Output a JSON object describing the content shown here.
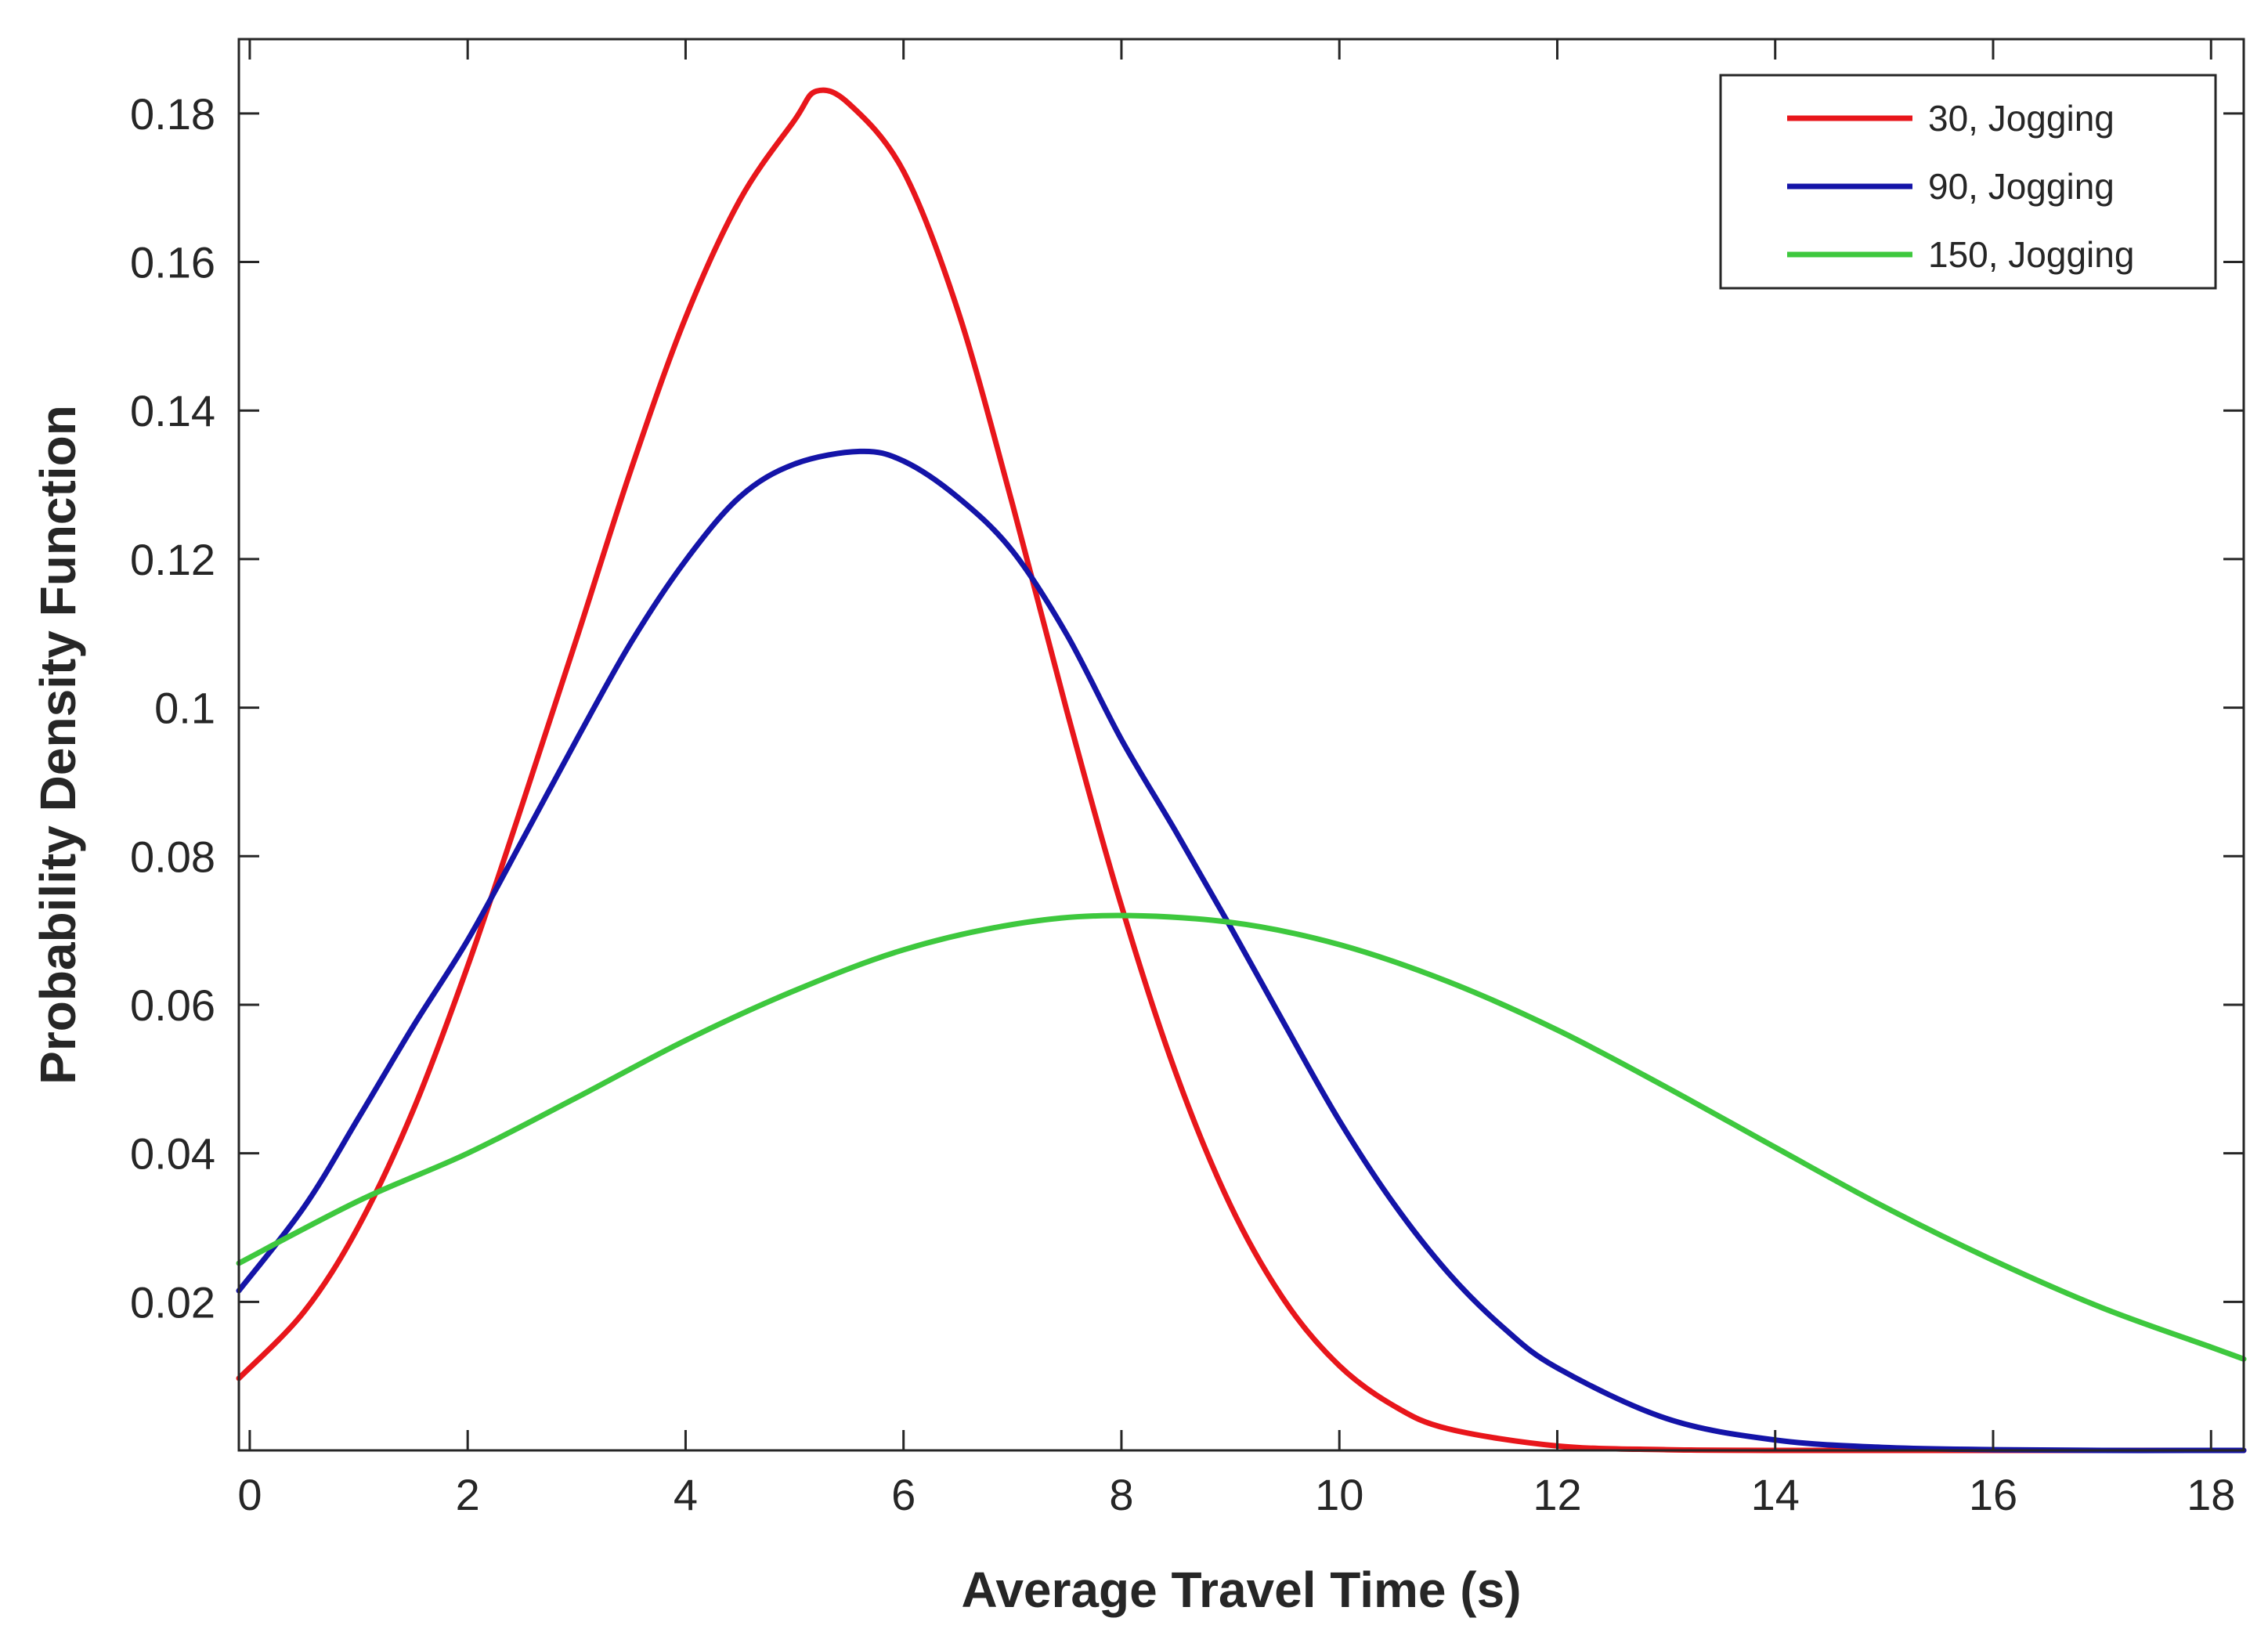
{
  "chart_data": {
    "type": "line",
    "title": "",
    "xlabel": "Average Travel Time (s)",
    "ylabel": "Probability Density Function",
    "xlim": [
      -0.1,
      18.3
    ],
    "ylim": [
      0,
      0.19
    ],
    "xticks": [
      0,
      2,
      4,
      6,
      8,
      10,
      12,
      14,
      16,
      18
    ],
    "xtick_labels": [
      "0",
      "2",
      "4",
      "6",
      "8",
      "10",
      "12",
      "14",
      "16",
      "18"
    ],
    "yticks": [
      0.02,
      0.04,
      0.06,
      0.08,
      0.1,
      0.12,
      0.14,
      0.16,
      0.18
    ],
    "ytick_labels": [
      "0.02",
      "0.04",
      "0.06",
      "0.08",
      "0.1",
      "0.12",
      "0.14",
      "0.16",
      "0.18"
    ],
    "grid": false,
    "legend_position": "top-right",
    "series": [
      {
        "name": "30, Jogging",
        "color": "#e8161b",
        "x": [
          -0.1,
          0.5,
          1,
          1.5,
          2,
          2.5,
          3,
          3.5,
          4,
          4.5,
          5,
          5.2,
          5.5,
          6,
          6.5,
          7,
          7.5,
          8,
          8.5,
          9,
          9.5,
          10,
          10.5,
          11,
          12,
          13,
          14,
          15,
          16,
          17,
          18,
          18.3
        ],
        "y": [
          0.0097,
          0.0187,
          0.0302,
          0.0458,
          0.0652,
          0.0869,
          0.1093,
          0.1321,
          0.1525,
          0.1684,
          0.1791,
          0.183,
          0.1813,
          0.1722,
          0.1534,
          0.1274,
          0.0995,
          0.0733,
          0.0508,
          0.033,
          0.0201,
          0.0114,
          0.006,
          0.0029,
          0.0006,
          0.0001,
          0,
          0,
          0,
          0,
          0,
          0
        ]
      },
      {
        "name": "90, Jogging",
        "color": "#1414a8",
        "x": [
          -0.1,
          0.5,
          1,
          1.5,
          2,
          2.5,
          3,
          3.5,
          4,
          4.5,
          5,
          5.6,
          6,
          6.5,
          7,
          7.5,
          8,
          8.5,
          9,
          9.5,
          10,
          10.5,
          11,
          11.5,
          12,
          13,
          14,
          15,
          16,
          17,
          18,
          18.3
        ],
        "y": [
          0.0215,
          0.0328,
          0.0448,
          0.0571,
          0.0687,
          0.0821,
          0.0957,
          0.1088,
          0.1198,
          0.1284,
          0.1328,
          0.1345,
          0.1332,
          0.1283,
          0.1211,
          0.1098,
          0.0957,
          0.0833,
          0.0705,
          0.0573,
          0.0444,
          0.0332,
          0.0239,
          0.0166,
          0.0111,
          0.0043,
          0.0014,
          0.0004,
          0.0001,
          0,
          0,
          0
        ]
      },
      {
        "name": "150, Jogging",
        "color": "#3ec83e",
        "x": [
          -0.1,
          1,
          2,
          3,
          4,
          5,
          6,
          7,
          7.9,
          9,
          10,
          11,
          12,
          13,
          14,
          15,
          16,
          17,
          18,
          18.3
        ],
        "y": [
          0.0252,
          0.0336,
          0.04,
          0.0475,
          0.0552,
          0.0619,
          0.0674,
          0.0708,
          0.072,
          0.0711,
          0.0681,
          0.0631,
          0.0566,
          0.0489,
          0.0408,
          0.0328,
          0.0256,
          0.0192,
          0.0139,
          0.0123
        ]
      }
    ]
  }
}
